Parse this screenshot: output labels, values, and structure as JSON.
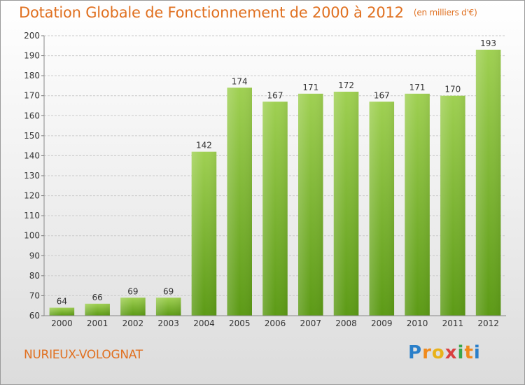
{
  "title": "Dotation Globale de Fonctionnement de 2000 à 2012",
  "subtitle": "(en milliers d'€)",
  "commune": "NURIEUX-VOLOGNAT",
  "logo": {
    "letters": [
      "P",
      "r",
      "o",
      "x",
      "i",
      "t",
      "i"
    ],
    "colors": [
      "#2a7fc9",
      "#f08a1c",
      "#e8b21a",
      "#d94040",
      "#3aa64b",
      "#f08a1c",
      "#2a7fc9"
    ]
  },
  "colors": {
    "bar_top": "#9fd052",
    "bar_bottom": "#5c9a16",
    "title": "#e07020",
    "grid": "#c9c9c9"
  },
  "chart_data": {
    "type": "bar",
    "title": "Dotation Globale de Fonctionnement de 2000 à 2012",
    "subtitle": "(en milliers d'€)",
    "categories": [
      "2000",
      "2001",
      "2002",
      "2003",
      "2004",
      "2005",
      "2006",
      "2007",
      "2008",
      "2009",
      "2010",
      "2011",
      "2012"
    ],
    "values": [
      64,
      66,
      69,
      69,
      142,
      174,
      167,
      171,
      172,
      167,
      171,
      170,
      193
    ],
    "xlabel": "",
    "ylabel": "",
    "ylim": [
      60,
      200
    ],
    "yticks": [
      60,
      70,
      80,
      90,
      100,
      110,
      120,
      130,
      140,
      150,
      160,
      170,
      180,
      190,
      200
    ],
    "grid": true,
    "legend": "none"
  }
}
